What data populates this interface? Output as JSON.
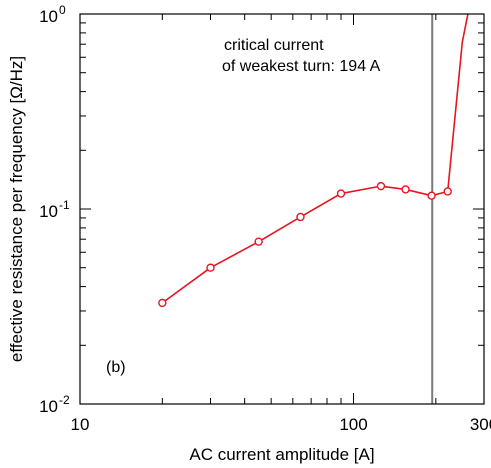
{
  "chart_data": {
    "type": "line",
    "xlabel": "AC current amplitude [A]",
    "ylabel": "effective resistance per frequency [Ω/Hz]",
    "xscale": "log",
    "yscale": "log",
    "xlim": [
      10,
      300
    ],
    "ylim": [
      0.01,
      1
    ],
    "grid": false,
    "colors": {
      "series": "#e8141e",
      "marker_edge": "#e8141e",
      "vline": "#7a7a7a"
    },
    "x_tick_labels": [
      {
        "value": 10,
        "label": "10"
      },
      {
        "value": 100,
        "label": "100"
      },
      {
        "value": 300,
        "label": "300"
      }
    ],
    "y_tick_labels": [
      {
        "value": 0.01,
        "base": "10",
        "exp": "-2"
      },
      {
        "value": 0.1,
        "base": "10",
        "exp": "-1"
      },
      {
        "value": 1,
        "base": "10",
        "exp": "0"
      }
    ],
    "series": [
      {
        "marker": "circle",
        "x": [
          20,
          30,
          45,
          64,
          90,
          126,
          155,
          193,
          221
        ],
        "y": [
          0.033,
          0.05,
          0.068,
          0.091,
          0.12,
          0.131,
          0.126,
          0.117,
          0.123
        ],
        "continuation": {
          "x": [
            221,
            250,
            262
          ],
          "y": [
            0.123,
            0.72,
            1.0
          ]
        }
      }
    ],
    "vline": {
      "x": 194
    },
    "annotation_lines": [
      "critical current",
      "of weakest turn: 194 A"
    ],
    "panel_label": "(b)"
  }
}
